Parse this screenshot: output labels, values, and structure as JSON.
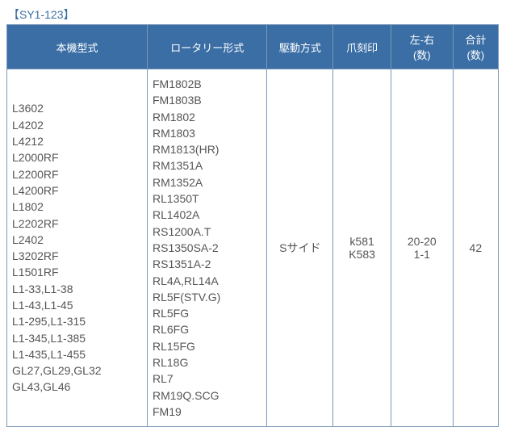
{
  "caption": "【SY1-123】",
  "columns": [
    {
      "label": "本機型式"
    },
    {
      "label": "ロータリー形式"
    },
    {
      "label": "駆動方式"
    },
    {
      "label": "爪刻印"
    },
    {
      "label_line1": "左-右",
      "label_line2": "(数)"
    },
    {
      "label_line1": "合計",
      "label_line2": "(数)"
    }
  ],
  "row": {
    "machine_models": [
      "L3602",
      "L4202",
      "L4212",
      "L2000RF",
      "L2200RF",
      "L4200RF",
      "L1802",
      "L2202RF",
      "L2402",
      "L3202RF",
      "L1501RF",
      "L1-33,L1-38",
      "L1-43,L1-45",
      "L1-295,L1-315",
      "L1-345,L1-385",
      "L1-435,L1-455",
      "GL27,GL29,GL32",
      "GL43,GL46"
    ],
    "rotary_types": [
      "FM1802B",
      "FM1803B",
      "RM1802",
      "RM1803",
      "RM1813(HR)",
      "RM1351A",
      "RM1352A",
      "RL1350T",
      "RL1402A",
      "RS1200A.T",
      "RS1350SA-2",
      "RS1351A-2",
      "RL4A,RL14A",
      "RL5F(STV.G)",
      "RL5FG",
      "RL6FG",
      "RL15FG",
      "RL18G",
      "RL7",
      "RM19Q.SCG",
      "FM19"
    ],
    "drive": "Sサイド",
    "claw_line1": "k581",
    "claw_line2": "K583",
    "lr_line1": "20-20",
    "lr_line2": "1-1",
    "total": "42"
  },
  "colors": {
    "header_bg": "#3a6ea5",
    "header_text": "#ffffff",
    "border": "#7a98b8",
    "body_text": "#555555",
    "caption_text": "#3a6ea5"
  }
}
